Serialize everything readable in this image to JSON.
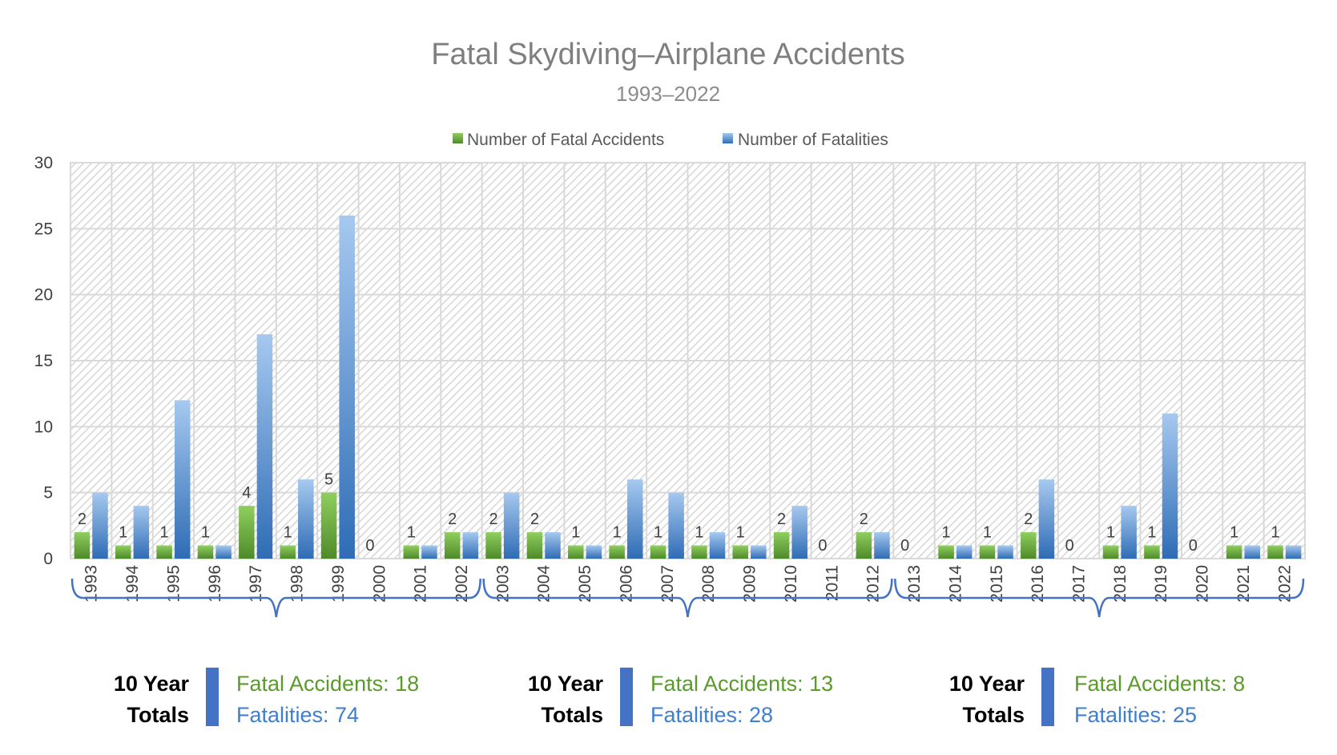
{
  "chart_data": {
    "type": "bar",
    "title": "Fatal Skydiving–Airplane Accidents",
    "subtitle": "1993–2022",
    "categories": [
      "1993",
      "1994",
      "1995",
      "1996",
      "1997",
      "1998",
      "1999",
      "2000",
      "2001",
      "2002",
      "2003",
      "2004",
      "2005",
      "2006",
      "2007",
      "2008",
      "2009",
      "2010",
      "2011",
      "2012",
      "2013",
      "2014",
      "2015",
      "2016",
      "2017",
      "2018",
      "2019",
      "2020",
      "2021",
      "2022"
    ],
    "series": [
      {
        "name": "Number of Fatal Accidents",
        "color": "#70ad47",
        "values": [
          2,
          1,
          1,
          1,
          4,
          1,
          5,
          0,
          1,
          2,
          2,
          2,
          1,
          1,
          1,
          1,
          1,
          2,
          0,
          2,
          0,
          1,
          1,
          2,
          0,
          1,
          1,
          0,
          1,
          1
        ]
      },
      {
        "name": "Number of Fatalities",
        "color": "#4a8bd6",
        "values": [
          5,
          4,
          12,
          1,
          17,
          6,
          26,
          0,
          1,
          2,
          5,
          2,
          1,
          6,
          5,
          2,
          1,
          4,
          0,
          2,
          0,
          1,
          1,
          6,
          0,
          4,
          11,
          0,
          1,
          1
        ]
      }
    ],
    "ylim": [
      0,
      30
    ],
    "yticks": [
      "0",
      "5",
      "10",
      "15",
      "20",
      "25",
      "30"
    ],
    "grid": true,
    "legend_position": "top",
    "xlabel": "",
    "ylabel": ""
  },
  "totals": [
    {
      "heading_line1": "10 Year",
      "heading_line2": "Totals",
      "accidents": "Fatal Accidents: 18",
      "fatalities": "Fatalities: 74"
    },
    {
      "heading_line1": "10 Year",
      "heading_line2": "Totals",
      "accidents": "Fatal Accidents: 13",
      "fatalities": "Fatalities: 28"
    },
    {
      "heading_line1": "10 Year",
      "heading_line2": "Totals",
      "accidents": "Fatal Accidents: 8",
      "fatalities": "Fatalities: 25"
    }
  ],
  "colors": {
    "accent_green": "#70ad47",
    "accent_blue": "#4a8bd6",
    "bracket": "#4472c4",
    "totals_bar": "#4472c4",
    "grid": "#d9d9d9"
  }
}
